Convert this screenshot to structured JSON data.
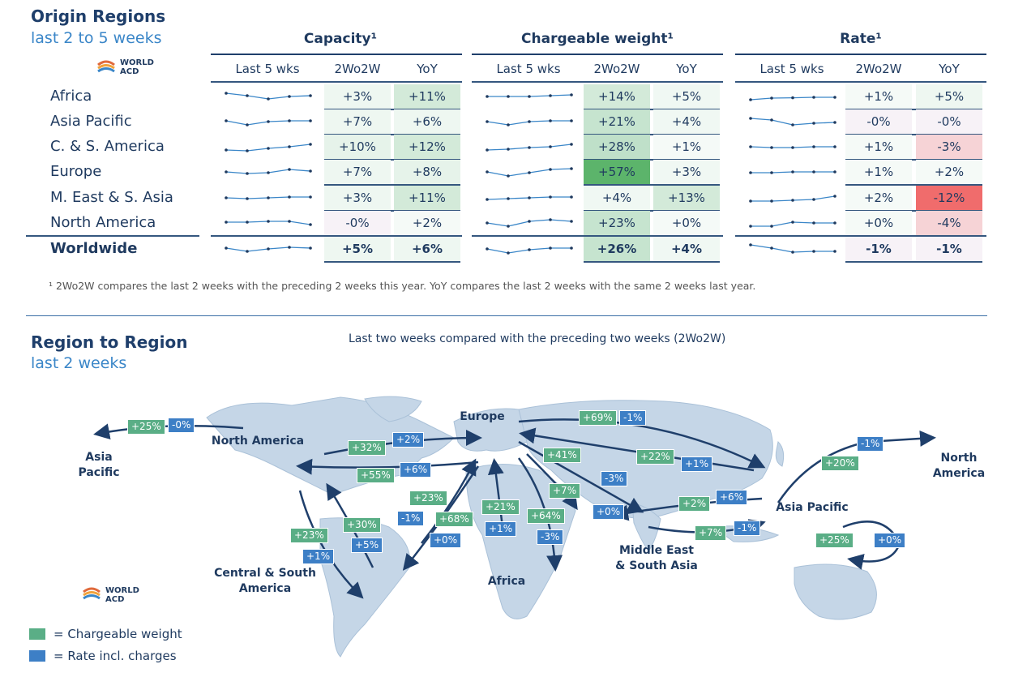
{
  "top": {
    "title": "Origin Regions",
    "subtitle": "last 2 to 5 weeks",
    "logo": {
      "line1": "WORLD",
      "line2": "ACD"
    },
    "groups": [
      {
        "title": "Capacity¹",
        "cols": [
          "Last 5 wks",
          "2Wo2W",
          "YoY"
        ]
      },
      {
        "title": "Chargeable weight¹",
        "cols": [
          "Last 5 wks",
          "2Wo2W",
          "YoY"
        ]
      },
      {
        "title": "Rate¹",
        "cols": [
          "Last 5 wks",
          "2Wo2W",
          "YoY"
        ]
      }
    ],
    "footnote": "¹ 2Wo2W compares the last 2 weeks with the preceding 2 weeks this year. YoY compares the last 2 weeks with the same 2 weeks last year."
  },
  "bottom": {
    "title": "Region to Region",
    "subtitle": "last 2 weeks",
    "caption": "Last two weeks compared with the preceding two weeks (2Wo2W)",
    "logo": {
      "line1": "WORLD",
      "line2": "ACD"
    },
    "legend": [
      {
        "color": "#5aae86",
        "label": "= Chargeable weight"
      },
      {
        "color": "#3d7fc6",
        "label": "= Rate incl. charges"
      }
    ],
    "map_labels": [
      {
        "id": "na",
        "text": "North America"
      },
      {
        "id": "eu",
        "text": "Europe"
      },
      {
        "id": "ap_left",
        "text": "Asia\nPacific"
      },
      {
        "id": "na_right",
        "text": "North\nAmerica"
      },
      {
        "id": "ap",
        "text": "Asia Pacific"
      },
      {
        "id": "csa",
        "text": "Central & South\nAmerica"
      },
      {
        "id": "af",
        "text": "Africa"
      },
      {
        "id": "mesa",
        "text": "Middle East\n& South Asia"
      }
    ],
    "chips": [
      {
        "kind": "g",
        "text": "+25%"
      },
      {
        "kind": "b",
        "text": "-0%"
      },
      {
        "kind": "g",
        "text": "+32%"
      },
      {
        "kind": "b",
        "text": "+2%"
      },
      {
        "kind": "g",
        "text": "+55%"
      },
      {
        "kind": "b",
        "text": "+6%"
      },
      {
        "kind": "g",
        "text": "+69%"
      },
      {
        "kind": "b",
        "text": "-1%"
      },
      {
        "kind": "g",
        "text": "+22%"
      },
      {
        "kind": "b",
        "text": "+1%"
      },
      {
        "kind": "b",
        "text": "-1%"
      },
      {
        "kind": "g",
        "text": "+20%"
      },
      {
        "kind": "g",
        "text": "+41%"
      },
      {
        "kind": "b",
        "text": "-3%"
      },
      {
        "kind": "g",
        "text": "+7%"
      },
      {
        "kind": "b",
        "text": "+0%"
      },
      {
        "kind": "g",
        "text": "+2%"
      },
      {
        "kind": "b",
        "text": "+6%"
      },
      {
        "kind": "g",
        "text": "+7%"
      },
      {
        "kind": "b",
        "text": "-1%"
      },
      {
        "kind": "g",
        "text": "+23%"
      },
      {
        "kind": "b",
        "text": "-1%"
      },
      {
        "kind": "g",
        "text": "+68%"
      },
      {
        "kind": "b",
        "text": "+0%"
      },
      {
        "kind": "g",
        "text": "+21%"
      },
      {
        "kind": "b",
        "text": "+1%"
      },
      {
        "kind": "g",
        "text": "+64%"
      },
      {
        "kind": "b",
        "text": "-3%"
      },
      {
        "kind": "g",
        "text": "+30%"
      },
      {
        "kind": "b",
        "text": "+5%"
      },
      {
        "kind": "g",
        "text": "+23%"
      },
      {
        "kind": "b",
        "text": "+1%"
      },
      {
        "kind": "g",
        "text": "+25%"
      },
      {
        "kind": "b",
        "text": "+0%"
      }
    ]
  },
  "chart_data": {
    "type": "table",
    "title": "Origin Regions",
    "columns": [
      "Capacity 2Wo2W",
      "Capacity YoY",
      "Chargeable weight 2Wo2W",
      "Chargeable weight YoY",
      "Rate 2Wo2W",
      "Rate YoY"
    ],
    "rows": [
      {
        "region": "Africa",
        "values": [
          "+3%",
          "+11%",
          "+14%",
          "+5%",
          "+1%",
          "+5%"
        ],
        "colors": [
          "#eef7f1",
          "#d3ead9",
          "#d3ead9",
          "#f0f8f3",
          "#f5faf7",
          "#eef7f1"
        ],
        "spark": [
          [
            0.7,
            0.55,
            0.35,
            0.5,
            0.55
          ],
          [
            0.5,
            0.5,
            0.5,
            0.55,
            0.6
          ],
          [
            0.3,
            0.4,
            0.42,
            0.45,
            0.45
          ]
        ]
      },
      {
        "region": "Asia Pacific",
        "values": [
          "+7%",
          "+6%",
          "+21%",
          "+4%",
          "-0%",
          "-0%"
        ],
        "colors": [
          "#eef7f1",
          "#eef7f1",
          "#c6e4cf",
          "#f0f8f3",
          "#f7f2f7",
          "#f7f2f7"
        ],
        "spark": [
          [
            0.55,
            0.3,
            0.5,
            0.55,
            0.55
          ],
          [
            0.5,
            0.3,
            0.5,
            0.55,
            0.55
          ],
          [
            0.7,
            0.6,
            0.3,
            0.4,
            0.45
          ]
        ]
      },
      {
        "region": "C. & S. America",
        "values": [
          "+10%",
          "+12%",
          "+28%",
          "+1%",
          "+1%",
          "-3%"
        ],
        "colors": [
          "#e6f3ea",
          "#d3ead9",
          "#bfe0c9",
          "#f5faf7",
          "#f5faf7",
          "#f6d3d6"
        ],
        "spark": [
          [
            0.3,
            0.25,
            0.4,
            0.5,
            0.65
          ],
          [
            0.3,
            0.35,
            0.45,
            0.5,
            0.65
          ],
          [
            0.5,
            0.45,
            0.45,
            0.5,
            0.5
          ]
        ]
      },
      {
        "region": "Europe",
        "values": [
          "+7%",
          "+8%",
          "+57%",
          "+3%",
          "+1%",
          "+2%"
        ],
        "colors": [
          "#eef7f1",
          "#e6f3ea",
          "#5cb46b",
          "#f0f8f3",
          "#f5faf7",
          "#f5faf7"
        ],
        "spark": [
          [
            0.5,
            0.4,
            0.45,
            0.65,
            0.55
          ],
          [
            0.5,
            0.25,
            0.45,
            0.65,
            0.7
          ],
          [
            0.45,
            0.45,
            0.5,
            0.5,
            0.5
          ]
        ]
      },
      {
        "region": "M. East & S. Asia",
        "values": [
          "+3%",
          "+11%",
          "+4%",
          "+13%",
          "+2%",
          "-12%"
        ],
        "colors": [
          "#eef7f1",
          "#d3ead9",
          "#f0f8f3",
          "#d3ead9",
          "#f5faf7",
          "#f06c6c"
        ],
        "spark": [
          [
            0.5,
            0.45,
            0.5,
            0.55,
            0.55
          ],
          [
            0.4,
            0.45,
            0.5,
            0.55,
            0.55
          ],
          [
            0.3,
            0.3,
            0.35,
            0.4,
            0.6
          ]
        ]
      },
      {
        "region": "North America",
        "values": [
          "-0%",
          "+2%",
          "+23%",
          "+0%",
          "+0%",
          "-4%"
        ],
        "colors": [
          "#f7f2f7",
          "#f5faf7",
          "#c6e4cf",
          "#f5faf7",
          "#f5faf7",
          "#f6d3d6"
        ],
        "spark": [
          [
            0.55,
            0.55,
            0.6,
            0.6,
            0.4
          ],
          [
            0.5,
            0.3,
            0.6,
            0.7,
            0.6
          ],
          [
            0.3,
            0.3,
            0.55,
            0.5,
            0.5
          ]
        ]
      },
      {
        "region": "Worldwide",
        "values": [
          "+5%",
          "+6%",
          "+26%",
          "+4%",
          "-1%",
          "-1%"
        ],
        "colors": [
          "#eef7f1",
          "#eef7f1",
          "#c6e4cf",
          "#f0f8f3",
          "#f7f2f7",
          "#f7f2f7"
        ],
        "spark": [
          [
            0.55,
            0.35,
            0.5,
            0.6,
            0.55
          ],
          [
            0.5,
            0.25,
            0.45,
            0.55,
            0.55
          ],
          [
            0.75,
            0.55,
            0.3,
            0.35,
            0.35
          ]
        ]
      }
    ]
  }
}
